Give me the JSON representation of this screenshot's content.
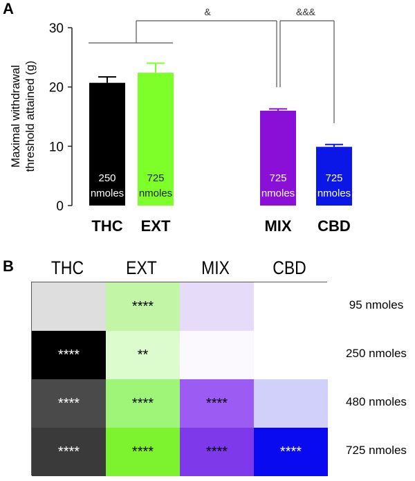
{
  "panel_a_label": "A",
  "panel_b_label": "B",
  "chart_data": [
    {
      "type": "bar",
      "categories": [
        "THC",
        "EXT",
        "MIX",
        "CBD"
      ],
      "values": [
        20.7,
        22.4,
        16.0,
        9.9
      ],
      "errors": [
        1.0,
        1.6,
        0.3,
        0.4
      ],
      "bar_labels": [
        "250\nnmoles",
        "725\nnmoles",
        "725\nnmoles",
        "725\nnmoles"
      ],
      "colors": [
        "#000000",
        "#7fff2a",
        "#8a10d8",
        "#0a17e6"
      ],
      "ylabel": "Maximal withdrawal\nthreshold attained (g)",
      "ylim": [
        0,
        30
      ],
      "yticks": [
        0,
        10,
        20,
        30
      ],
      "annotations": [
        "&",
        "&&&"
      ]
    },
    {
      "type": "heatmap",
      "columns": [
        "THC",
        "EXT",
        "MIX",
        "CBD"
      ],
      "rows": [
        "95 nmoles",
        "250 nmoles",
        "480 nmoles",
        "725 nmoles"
      ],
      "significance": [
        [
          "",
          "****",
          "",
          ""
        ],
        [
          "****",
          "**",
          "",
          ""
        ],
        [
          "****",
          "****",
          "****",
          ""
        ],
        [
          "****",
          "****",
          "****",
          "****"
        ]
      ],
      "cell_colors": [
        [
          "#dedede",
          "#c2f5a6",
          "#e6dcfa",
          "#ffffff"
        ],
        [
          "#000000",
          "#dcfccd",
          "#fbf9fe",
          "#ffffff"
        ],
        [
          "#4a4a4a",
          "#9ef577",
          "#9c5bf2",
          "#d0d0fb"
        ],
        [
          "#3a3a3a",
          "#7cf32e",
          "#7e39ea",
          "#0a0af0"
        ]
      ],
      "text_colors": [
        [
          "#000000",
          "#000000",
          "#000000",
          "#000000"
        ],
        [
          "#ffffff",
          "#000000",
          "#000000",
          "#000000"
        ],
        [
          "#ffffff",
          "#000000",
          "#000000",
          "#000000"
        ],
        [
          "#ffffff",
          "#000000",
          "#000000",
          "#ffffff"
        ]
      ]
    }
  ]
}
